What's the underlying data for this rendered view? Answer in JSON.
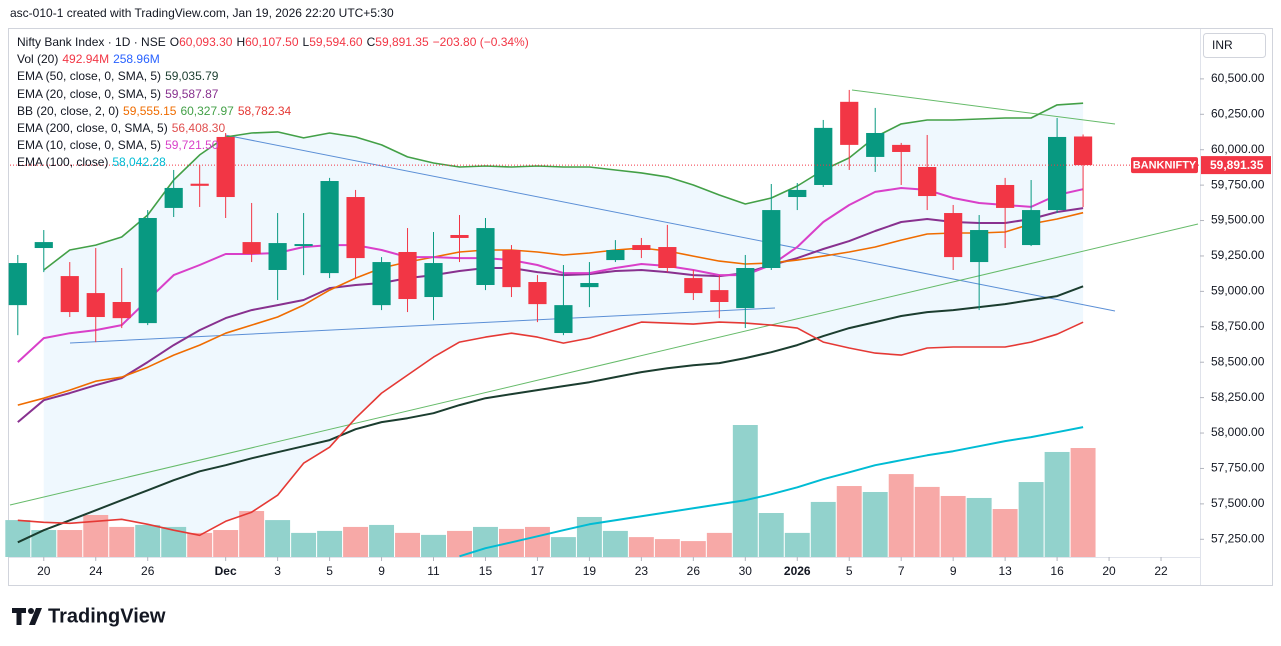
{
  "header": {
    "caption": "asc-010-1 created with TradingView.com, Jan 19, 2026 22:20 UTC+5:30",
    "brand": "TradingView"
  },
  "chart_data": {
    "type": "candlestick",
    "title": "Nifty Bank Index · 1D · NSE",
    "symbol": "BANKNIFTY",
    "currency": "INR",
    "ohlc_legend": [
      {
        "key": "O",
        "label": "60,093.30"
      },
      {
        "key": "H",
        "label": "60,107.50"
      },
      {
        "key": "L",
        "label": "59,594.60"
      },
      {
        "key": "C",
        "label": "59,891.35"
      }
    ],
    "change_label": "−203.80 (−0.34%)",
    "up_color": "#089981",
    "down_color": "#f23645",
    "open": [
      58903,
      59306,
      59108,
      58988,
      58925,
      58776,
      59589,
      59760,
      60090,
      59348,
      59151,
      59320,
      59129,
      59666,
      58903,
      59278,
      58960,
      59398,
      59045,
      59292,
      59066,
      58706,
      59030,
      59221,
      59327,
      59313,
      59094,
      59009,
      58882,
      59165,
      59666,
      59751,
      60338,
      59949,
      60034,
      59878,
      59553,
      59207,
      59751,
      59327,
      59574,
      60093.3
    ],
    "high": [
      59257,
      59433,
      59207,
      59306,
      59165,
      59574,
      59857,
      59892,
      60118,
      59624,
      59553,
      59553,
      59801,
      59716,
      59242,
      59447,
      59419,
      59539,
      59518,
      59327,
      59115,
      59186,
      59207,
      59362,
      59377,
      59469,
      59151,
      59115,
      59257,
      59758,
      59765,
      60210,
      60422,
      60295,
      60048,
      60104,
      59610,
      59539,
      59801,
      59786,
      60224,
      60107.5
    ],
    "low": [
      58691,
      59136,
      58819,
      58642,
      58741,
      58762,
      59525,
      59596,
      59518,
      59207,
      58939,
      59115,
      59094,
      59094,
      58868,
      58854,
      58797,
      59207,
      59009,
      58960,
      58783,
      58691,
      58889,
      59207,
      59235,
      59136,
      58939,
      58811,
      58741,
      59151,
      59574,
      59737,
      59857,
      59843,
      59751,
      59574,
      59151,
      58868,
      59306,
      59320,
      59553,
      59594.6
    ],
    "close": [
      59200,
      59348,
      58854,
      58819,
      58811,
      59518,
      59730,
      59745,
      59666,
      59264,
      59341,
      59334,
      59779,
      59235,
      59207,
      58946,
      59200,
      59377,
      59447,
      59030,
      58910,
      58903,
      59059,
      59292,
      59292,
      59165,
      58988,
      58925,
      59165,
      59574,
      59716,
      60154,
      60034,
      60118,
      59984,
      59673,
      59242,
      59433,
      59589,
      59574,
      60090,
      59891.35
    ],
    "volume": {
      "name": "Vol (20)",
      "up_color": "#92d2cc",
      "down_color": "#f7a9a7",
      "labels": [
        {
          "text": "492.94M",
          "color": "#f23645"
        },
        {
          "text": "258.96M",
          "color": "#2962ff"
        }
      ],
      "values": [
        167,
        122,
        122,
        190,
        136,
        145,
        136,
        109,
        122,
        208,
        167,
        109,
        118,
        136,
        145,
        109,
        100,
        118,
        136,
        127,
        136,
        90,
        181,
        118,
        90,
        81,
        72,
        109,
        597,
        199,
        109,
        249,
        321,
        294,
        375,
        317,
        276,
        267,
        217,
        339,
        475,
        492.94
      ]
    },
    "indicators": [
      {
        "name": "EMA (50, close, 0, SMA, 5)",
        "lines": [
          {
            "color": "#1b3d2f",
            "label": "59,035.79",
            "values": [
              57229,
              57314,
              57384,
              57455,
              57526,
              57596,
              57667,
              57730,
              57773,
              57822,
              57865,
              57907,
              57950,
              58027,
              58077,
              58105,
              58140,
              58197,
              58246,
              58275,
              58303,
              58331,
              58359,
              58395,
              58430,
              58458,
              58479,
              58494,
              58529,
              58571,
              58621,
              58684,
              58741,
              58783,
              58826,
              58854,
              58868,
              58889,
              58910,
              58939,
              58967,
              59035.79
            ]
          }
        ]
      },
      {
        "name": "EMA (20, close, 0, SMA, 5)",
        "lines": [
          {
            "color": "#88318f",
            "label": "59,587.87",
            "values": [
              58077,
              58232,
              58282,
              58338,
              58388,
              58501,
              58621,
              58727,
              58811,
              58868,
              58903,
              58939,
              59023,
              59045,
              59059,
              59094,
              59115,
              59144,
              59165,
              59165,
              59136,
              59115,
              59122,
              59144,
              59151,
              59136,
              59115,
              59108,
              59129,
              59186,
              59235,
              59299,
              59355,
              59426,
              59490,
              59511,
              59490,
              59483,
              59483,
              59511,
              59560,
              59587.87
            ]
          }
        ]
      },
      {
        "name": "BB (20, close, 2, 0)",
        "lines": [
          {
            "color": "#ef6c00",
            "label": "59,555.15",
            "values": [
              58197,
              58246,
              58303,
              58366,
              58395,
              58465,
              58550,
              58621,
              58705,
              58762,
              58819,
              58903,
              59009,
              59094,
              59165,
              59207,
              59242,
              59278,
              59292,
              59292,
              59278,
              59257,
              59271,
              59292,
              59306,
              59285,
              59249,
              59214,
              59193,
              59200,
              59221,
              59249,
              59278,
              59313,
              59362,
              59405,
              59412,
              59412,
              59419,
              59476,
              59511,
              59555.15
            ]
          },
          {
            "color": "#43a047",
            "label": "60,327.97",
            "values": [
              null,
              59151,
              59292,
              59327,
              59384,
              59539,
              59786,
              59963,
              60090,
              60118,
              60126,
              60083,
              60118,
              60090,
              60034,
              59949,
              59906,
              59878,
              59885,
              59878,
              59885,
              59878,
              59878,
              59857,
              59836,
              59808,
              59751,
              59680,
              59617,
              59659,
              59744,
              59857,
              59942,
              60090,
              60182,
              60210,
              60210,
              60217,
              60224,
              60224,
              60316,
              60327.97
            ]
          },
          {
            "color": "#e53935",
            "label": "58,782.34",
            "values": [
              57384,
              57370,
              57363,
              57377,
              57391,
              57356,
              57314,
              57278,
              57377,
              57441,
              57561,
              57787,
              57900,
              58105,
              58282,
              58409,
              58536,
              58642,
              58677,
              58705,
              58677,
              58635,
              58670,
              58727,
              58783,
              58776,
              58769,
              58783,
              58776,
              58762,
              58741,
              58642,
              58600,
              58564,
              58550,
              58600,
              58607,
              58607,
              58607,
              58642,
              58698,
              58782.34
            ]
          }
        ]
      },
      {
        "name": "EMA (200, close, 0, SMA, 5)",
        "lines": [
          {
            "color": "#e04e4e",
            "label": "56,408.30"
          }
        ]
      },
      {
        "name": "EMA (10, close, 0, SMA, 5)",
        "lines": [
          {
            "color": "#d940c9",
            "label": "59,721.50",
            "values": [
              58501,
              58670,
              58705,
              58727,
              58762,
              58939,
              59115,
              59186,
              59264,
              59264,
              59271,
              59313,
              59327,
              59327,
              59292,
              59242,
              59242,
              59235,
              59235,
              59221,
              59186,
              59129,
              59129,
              59165,
              59193,
              59179,
              59151,
              59115,
              59115,
              59186,
              59313,
              59490,
              59610,
              59702,
              59730,
              59716,
              59659,
              59624,
              59610,
              59596,
              59680,
              59721.5
            ]
          }
        ]
      },
      {
        "name": "EMA (100, close)",
        "lines": [
          {
            "color": "#00bcd4",
            "label": "58,042.28",
            "values": [
              null,
              null,
              null,
              null,
              null,
              null,
              null,
              null,
              null,
              null,
              null,
              null,
              null,
              null,
              null,
              null,
              null,
              57130,
              57187,
              57229,
              57271,
              57314,
              57356,
              57384,
              57413,
              57441,
              57469,
              57497,
              57526,
              57568,
              57617,
              57674,
              57723,
              57773,
              57808,
              57843,
              57872,
              57907,
              57943,
              57971,
              58006,
              58042.28
            ]
          }
        ]
      }
    ],
    "xlim": [
      -0.3,
      45.5
    ],
    "xticks": [
      {
        "value": 1,
        "label": "20"
      },
      {
        "value": 3,
        "label": "24"
      },
      {
        "value": 5,
        "label": "26"
      },
      {
        "value": 8,
        "label": "Dec"
      },
      {
        "value": 10,
        "label": "3"
      },
      {
        "value": 12,
        "label": "5"
      },
      {
        "value": 14,
        "label": "9"
      },
      {
        "value": 16,
        "label": "11"
      },
      {
        "value": 18,
        "label": "15"
      },
      {
        "value": 20,
        "label": "17"
      },
      {
        "value": 22,
        "label": "19"
      },
      {
        "value": 24,
        "label": "23"
      },
      {
        "value": 26,
        "label": "26"
      },
      {
        "value": 28,
        "label": "30"
      },
      {
        "value": 30,
        "label": "2026"
      },
      {
        "value": 32,
        "label": "5"
      },
      {
        "value": 34,
        "label": "7"
      },
      {
        "value": 36,
        "label": "9"
      },
      {
        "value": 38,
        "label": "13"
      },
      {
        "value": 40,
        "label": "16"
      },
      {
        "value": 42,
        "label": "20"
      },
      {
        "value": 44,
        "label": "22"
      }
    ],
    "ylim": [
      57125,
      60845
    ],
    "yticks": [
      {
        "value": 60500,
        "label": "60,500.00"
      },
      {
        "value": 60250,
        "label": "60,250.00"
      },
      {
        "value": 60000,
        "label": "60,000.00"
      },
      {
        "value": 59750,
        "label": "59,750.00"
      },
      {
        "value": 59500,
        "label": "59,500.00"
      },
      {
        "value": 59250,
        "label": "59,250.00"
      },
      {
        "value": 59000,
        "label": "59,000.00"
      },
      {
        "value": 58750,
        "label": "58,750.00"
      },
      {
        "value": 58500,
        "label": "58,500.00"
      },
      {
        "value": 58250,
        "label": "58,250.00"
      },
      {
        "value": 58000,
        "label": "58,000.00"
      },
      {
        "value": 57750,
        "label": "57,750.00"
      },
      {
        "value": 57500,
        "label": "57,500.00"
      },
      {
        "value": 57250,
        "label": "57,250.00"
      }
    ]
  }
}
